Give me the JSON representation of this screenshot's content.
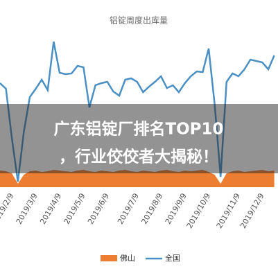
{
  "chart_data": {
    "type": "line",
    "title": "铝锭周度出库量",
    "categories": [
      null,
      null,
      "2019/2/9",
      null,
      null,
      null,
      "2019/3/9",
      null,
      null,
      null,
      "2019/4/9",
      null,
      null,
      null,
      "2019/5/9",
      null,
      null,
      null,
      "2019/6/9",
      null,
      null,
      null,
      null,
      "2019/7/9",
      null,
      null,
      null,
      "2019/8/9",
      null,
      null,
      null,
      "2019/9/9",
      null,
      null,
      null,
      "2019/10/9",
      null,
      null,
      null,
      null,
      "2019/11/9",
      null,
      null,
      null,
      "2019/12/9",
      null,
      null
    ],
    "series": [
      {
        "name": "佛山",
        "color": "#ed7d31",
        "kind": "area",
        "values": [
          24,
          23,
          20,
          5,
          18,
          23,
          24,
          22,
          23,
          25,
          24,
          23,
          22,
          24,
          25,
          23,
          22,
          24,
          23,
          22,
          24,
          25,
          23,
          22,
          24,
          23,
          22,
          24,
          25,
          23,
          22,
          24,
          23,
          24,
          25,
          22,
          18,
          5,
          20,
          23,
          24,
          22,
          23,
          24,
          25,
          23,
          24
        ]
      },
      {
        "name": "全国",
        "color": "#4a90c4",
        "kind": "line",
        "values": [
          150,
          142,
          70,
          8,
          80,
          130,
          142,
          155,
          140,
          210,
          165,
          163,
          164,
          175,
          173,
          115,
          147,
          150,
          152,
          138,
          132,
          155,
          157,
          152,
          137,
          145,
          152,
          160,
          143,
          147,
          137,
          150,
          160,
          167,
          166,
          200,
          120,
          15,
          152,
          164,
          160,
          170,
          184,
          182,
          180,
          170,
          190
        ]
      }
    ],
    "ylim": [
      0,
      230
    ],
    "legend": "bottom",
    "overlay_text": [
      "广东铝锭厂排名TOP10",
      "，行业佼佼者大揭秘！"
    ]
  }
}
